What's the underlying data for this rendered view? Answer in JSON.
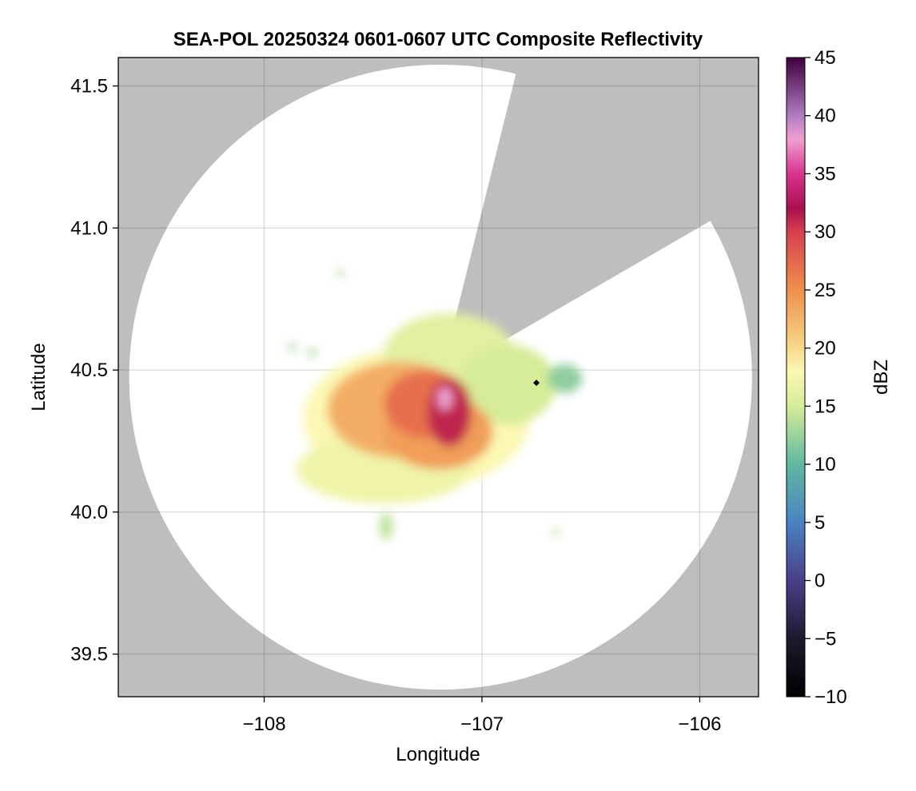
{
  "chart_data": {
    "type": "heatmap",
    "title": "SEA-POL 20250324 0601-0607 UTC Composite Reflectivity",
    "xlabel": "Longitude",
    "ylabel": "Latitude",
    "xlim": [
      -108.67,
      -105.73
    ],
    "ylim": [
      39.35,
      41.6
    ],
    "xticks": [
      -108,
      -107,
      -106
    ],
    "xtick_labels": [
      "−108",
      "−107",
      "−106"
    ],
    "yticks": [
      39.5,
      40.0,
      40.5,
      41.0,
      41.5
    ],
    "ytick_labels": [
      "39.5",
      "40.0",
      "40.5",
      "41.0",
      "41.5"
    ],
    "grid": true,
    "no_data_color": "#bebebe",
    "radar": {
      "center_lon": -107.19,
      "center_lat": 40.475,
      "range_lon_deg": 1.43,
      "range_lat_deg": 1.1,
      "blocked_sector_azimuth_deg": [
        14,
        60
      ]
    },
    "marker": {
      "lon": -106.75,
      "lat": 40.455,
      "color": "#000000"
    },
    "colorbar": {
      "label": "dBZ",
      "min": -10,
      "max": 45,
      "ticks": [
        -10,
        -5,
        0,
        5,
        10,
        15,
        20,
        25,
        30,
        35,
        40,
        45
      ],
      "tick_labels": [
        "−10",
        "−5",
        "0",
        "5",
        "10",
        "15",
        "20",
        "25",
        "30",
        "35",
        "40",
        "45"
      ],
      "color_stops": [
        {
          "value": -10,
          "color": "#000000"
        },
        {
          "value": -5,
          "color": "#1e1a2e"
        },
        {
          "value": 0,
          "color": "#4a3f8a"
        },
        {
          "value": 5,
          "color": "#4a83c3"
        },
        {
          "value": 10,
          "color": "#5fb8a0"
        },
        {
          "value": 15,
          "color": "#d6ec98"
        },
        {
          "value": 18,
          "color": "#fbf8b2"
        },
        {
          "value": 20,
          "color": "#f7d98a"
        },
        {
          "value": 25,
          "color": "#f08f4c"
        },
        {
          "value": 30,
          "color": "#d6404e"
        },
        {
          "value": 32,
          "color": "#a8104e"
        },
        {
          "value": 35,
          "color": "#d8338e"
        },
        {
          "value": 38,
          "color": "#f0a0d0"
        },
        {
          "value": 40,
          "color": "#b07cc2"
        },
        {
          "value": 45,
          "color": "#3f0040"
        }
      ]
    },
    "storm_echoes": [
      {
        "lon": -107.3,
        "lat": 40.33,
        "rx": 0.52,
        "ry": 0.25,
        "dbz": 18
      },
      {
        "lon": -107.45,
        "lat": 40.15,
        "rx": 0.4,
        "ry": 0.12,
        "dbz": 17
      },
      {
        "lon": -107.15,
        "lat": 40.55,
        "rx": 0.3,
        "ry": 0.15,
        "dbz": 16
      },
      {
        "lon": -106.88,
        "lat": 40.45,
        "rx": 0.22,
        "ry": 0.14,
        "dbz": 15
      },
      {
        "lon": -106.62,
        "lat": 40.47,
        "rx": 0.08,
        "ry": 0.05,
        "dbz": 12
      },
      {
        "lon": -107.38,
        "lat": 40.36,
        "rx": 0.33,
        "ry": 0.17,
        "dbz": 23
      },
      {
        "lon": -107.2,
        "lat": 40.28,
        "rx": 0.25,
        "ry": 0.13,
        "dbz": 24
      },
      {
        "lon": -107.25,
        "lat": 40.38,
        "rx": 0.2,
        "ry": 0.12,
        "dbz": 27
      },
      {
        "lon": -107.15,
        "lat": 40.35,
        "rx": 0.1,
        "ry": 0.12,
        "dbz": 31
      },
      {
        "lon": -107.17,
        "lat": 40.4,
        "rx": 0.035,
        "ry": 0.04,
        "dbz": 38
      },
      {
        "lon": -107.78,
        "lat": 40.56,
        "rx": 0.02,
        "ry": 0.015,
        "dbz": 13
      },
      {
        "lon": -107.87,
        "lat": 40.58,
        "rx": 0.018,
        "ry": 0.015,
        "dbz": 13
      },
      {
        "lon": -107.65,
        "lat": 40.84,
        "rx": 0.022,
        "ry": 0.01,
        "dbz": 13
      },
      {
        "lon": -107.44,
        "lat": 39.95,
        "rx": 0.03,
        "ry": 0.05,
        "dbz": 14
      },
      {
        "lon": -106.66,
        "lat": 39.93,
        "rx": 0.02,
        "ry": 0.012,
        "dbz": 14
      }
    ]
  }
}
